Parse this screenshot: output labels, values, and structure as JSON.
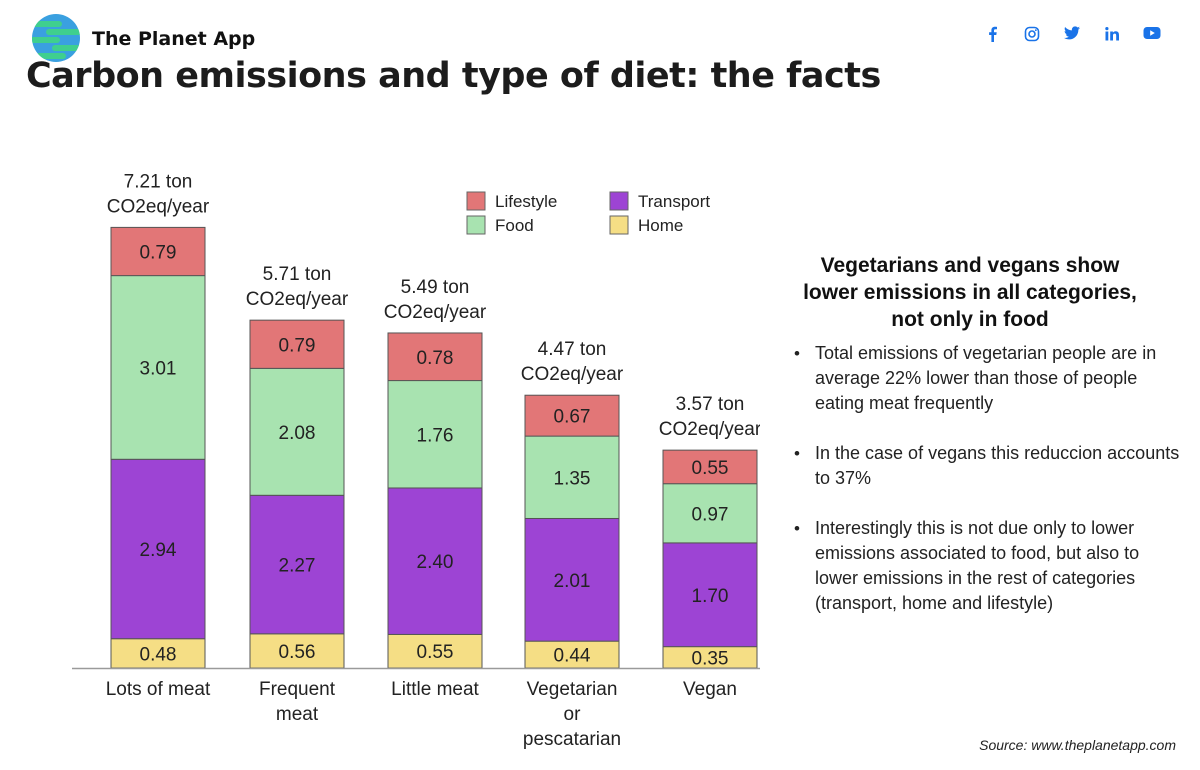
{
  "header": {
    "brand": "The Planet App",
    "title": "Carbon emissions and type of diet: the facts",
    "social_icons": [
      "facebook-icon",
      "instagram-icon",
      "twitter-icon",
      "linkedin-icon",
      "youtube-icon"
    ],
    "social_color": "#1a73e8"
  },
  "chart_data": {
    "type": "bar",
    "stacked": true,
    "categories": [
      [
        "Lots of meat"
      ],
      [
        "Frequent",
        "meat"
      ],
      [
        "Little meat"
      ],
      [
        "Vegetarian",
        "or",
        "pescatarian"
      ],
      [
        "Vegan"
      ]
    ],
    "totals": [
      [
        "7.21 ton",
        "CO2eq/year"
      ],
      [
        "5.71 ton",
        "CO2eq/year"
      ],
      [
        "5.49 ton",
        "CO2eq/year"
      ],
      [
        "4.47 ton",
        "CO2eq/year"
      ],
      [
        "3.57 ton",
        "CO2eq/year"
      ]
    ],
    "series": [
      {
        "name": "Home",
        "color": "#f5de85",
        "values": [
          0.48,
          0.56,
          0.55,
          0.44,
          0.35
        ]
      },
      {
        "name": "Transport",
        "color": "#9d44d4",
        "values": [
          2.94,
          2.27,
          2.4,
          2.01,
          1.7
        ]
      },
      {
        "name": "Food",
        "color": "#a8e3b0",
        "values": [
          3.01,
          2.08,
          1.76,
          1.35,
          0.97
        ]
      },
      {
        "name": "Lifestyle",
        "color": "#e27677",
        "values": [
          0.79,
          0.79,
          0.78,
          0.67,
          0.55
        ]
      }
    ],
    "value_labels": [
      [
        "0.48",
        "0.56",
        "0.55",
        "0.44",
        "0.35"
      ],
      [
        "2.94",
        "2.27",
        "2.40",
        "2.01",
        "1.70"
      ],
      [
        "3.01",
        "2.08",
        "1.76",
        "1.35",
        "0.97"
      ],
      [
        "0.79",
        "0.79",
        "0.78",
        "0.67",
        "0.55"
      ]
    ],
    "legend_order": [
      "Lifestyle",
      "Transport",
      "Food",
      "Home"
    ],
    "legend_position": "top-center",
    "ylim": [
      0,
      7.21
    ],
    "grid": false,
    "title": "",
    "xlabel": "",
    "ylabel": ""
  },
  "note": {
    "heading_lines": [
      "Vegetarians and vegans show",
      "lower emissions in all categories,",
      "not only in food"
    ],
    "bullets": [
      "Total emissions of vegetarian people are in average 22% lower than those of people eating meat frequently",
      "In the case of vegans this reduccion accounts to 37%",
      "Interestingly this is not due only to lower emissions associated to food, but also to lower emissions in the rest of categories (transport, home and lifestyle)"
    ]
  },
  "source": "Source: www.theplanetapp.com"
}
